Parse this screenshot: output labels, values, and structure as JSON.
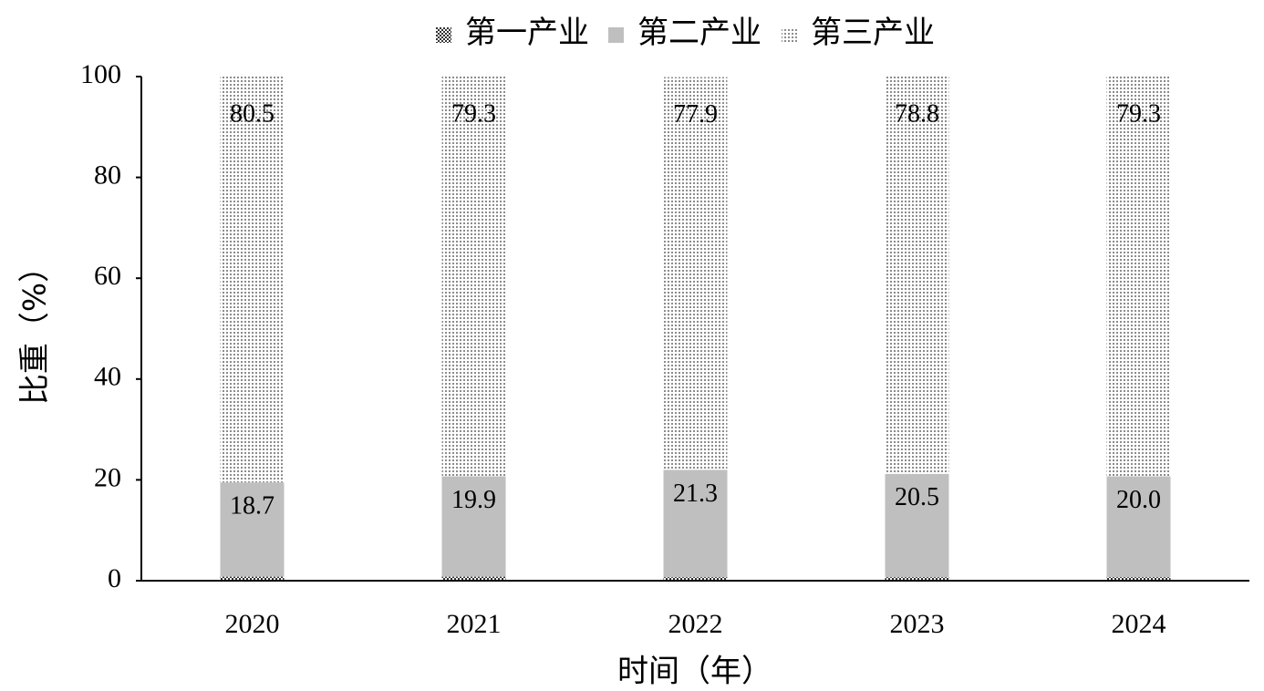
{
  "chart_data": {
    "type": "stacked_bar",
    "x_label": "时间（年）",
    "y_label": "比重（%）",
    "categories": [
      "2020",
      "2021",
      "2022",
      "2023",
      "2024"
    ],
    "series": [
      {
        "name": "第一产业",
        "color": "#333333",
        "pattern": "dense",
        "values": [
          0.8,
          0.8,
          0.7,
          0.7,
          0.7
        ]
      },
      {
        "name": "第二产业",
        "color": "#bfbfbf",
        "pattern": "solid",
        "values": [
          18.7,
          19.9,
          21.3,
          20.5,
          20.0
        ],
        "value_labels": [
          "18.7",
          "19.9",
          "21.3",
          "20.5",
          "20.0"
        ]
      },
      {
        "name": "第三产业",
        "color": "#8c8c8c",
        "pattern": "dots",
        "values": [
          80.5,
          79.3,
          77.9,
          78.8,
          79.3
        ]
      }
    ],
    "ylim": [
      0,
      100
    ],
    "yticks": [
      0,
      20,
      40,
      60,
      80,
      100
    ],
    "legend": "top"
  }
}
